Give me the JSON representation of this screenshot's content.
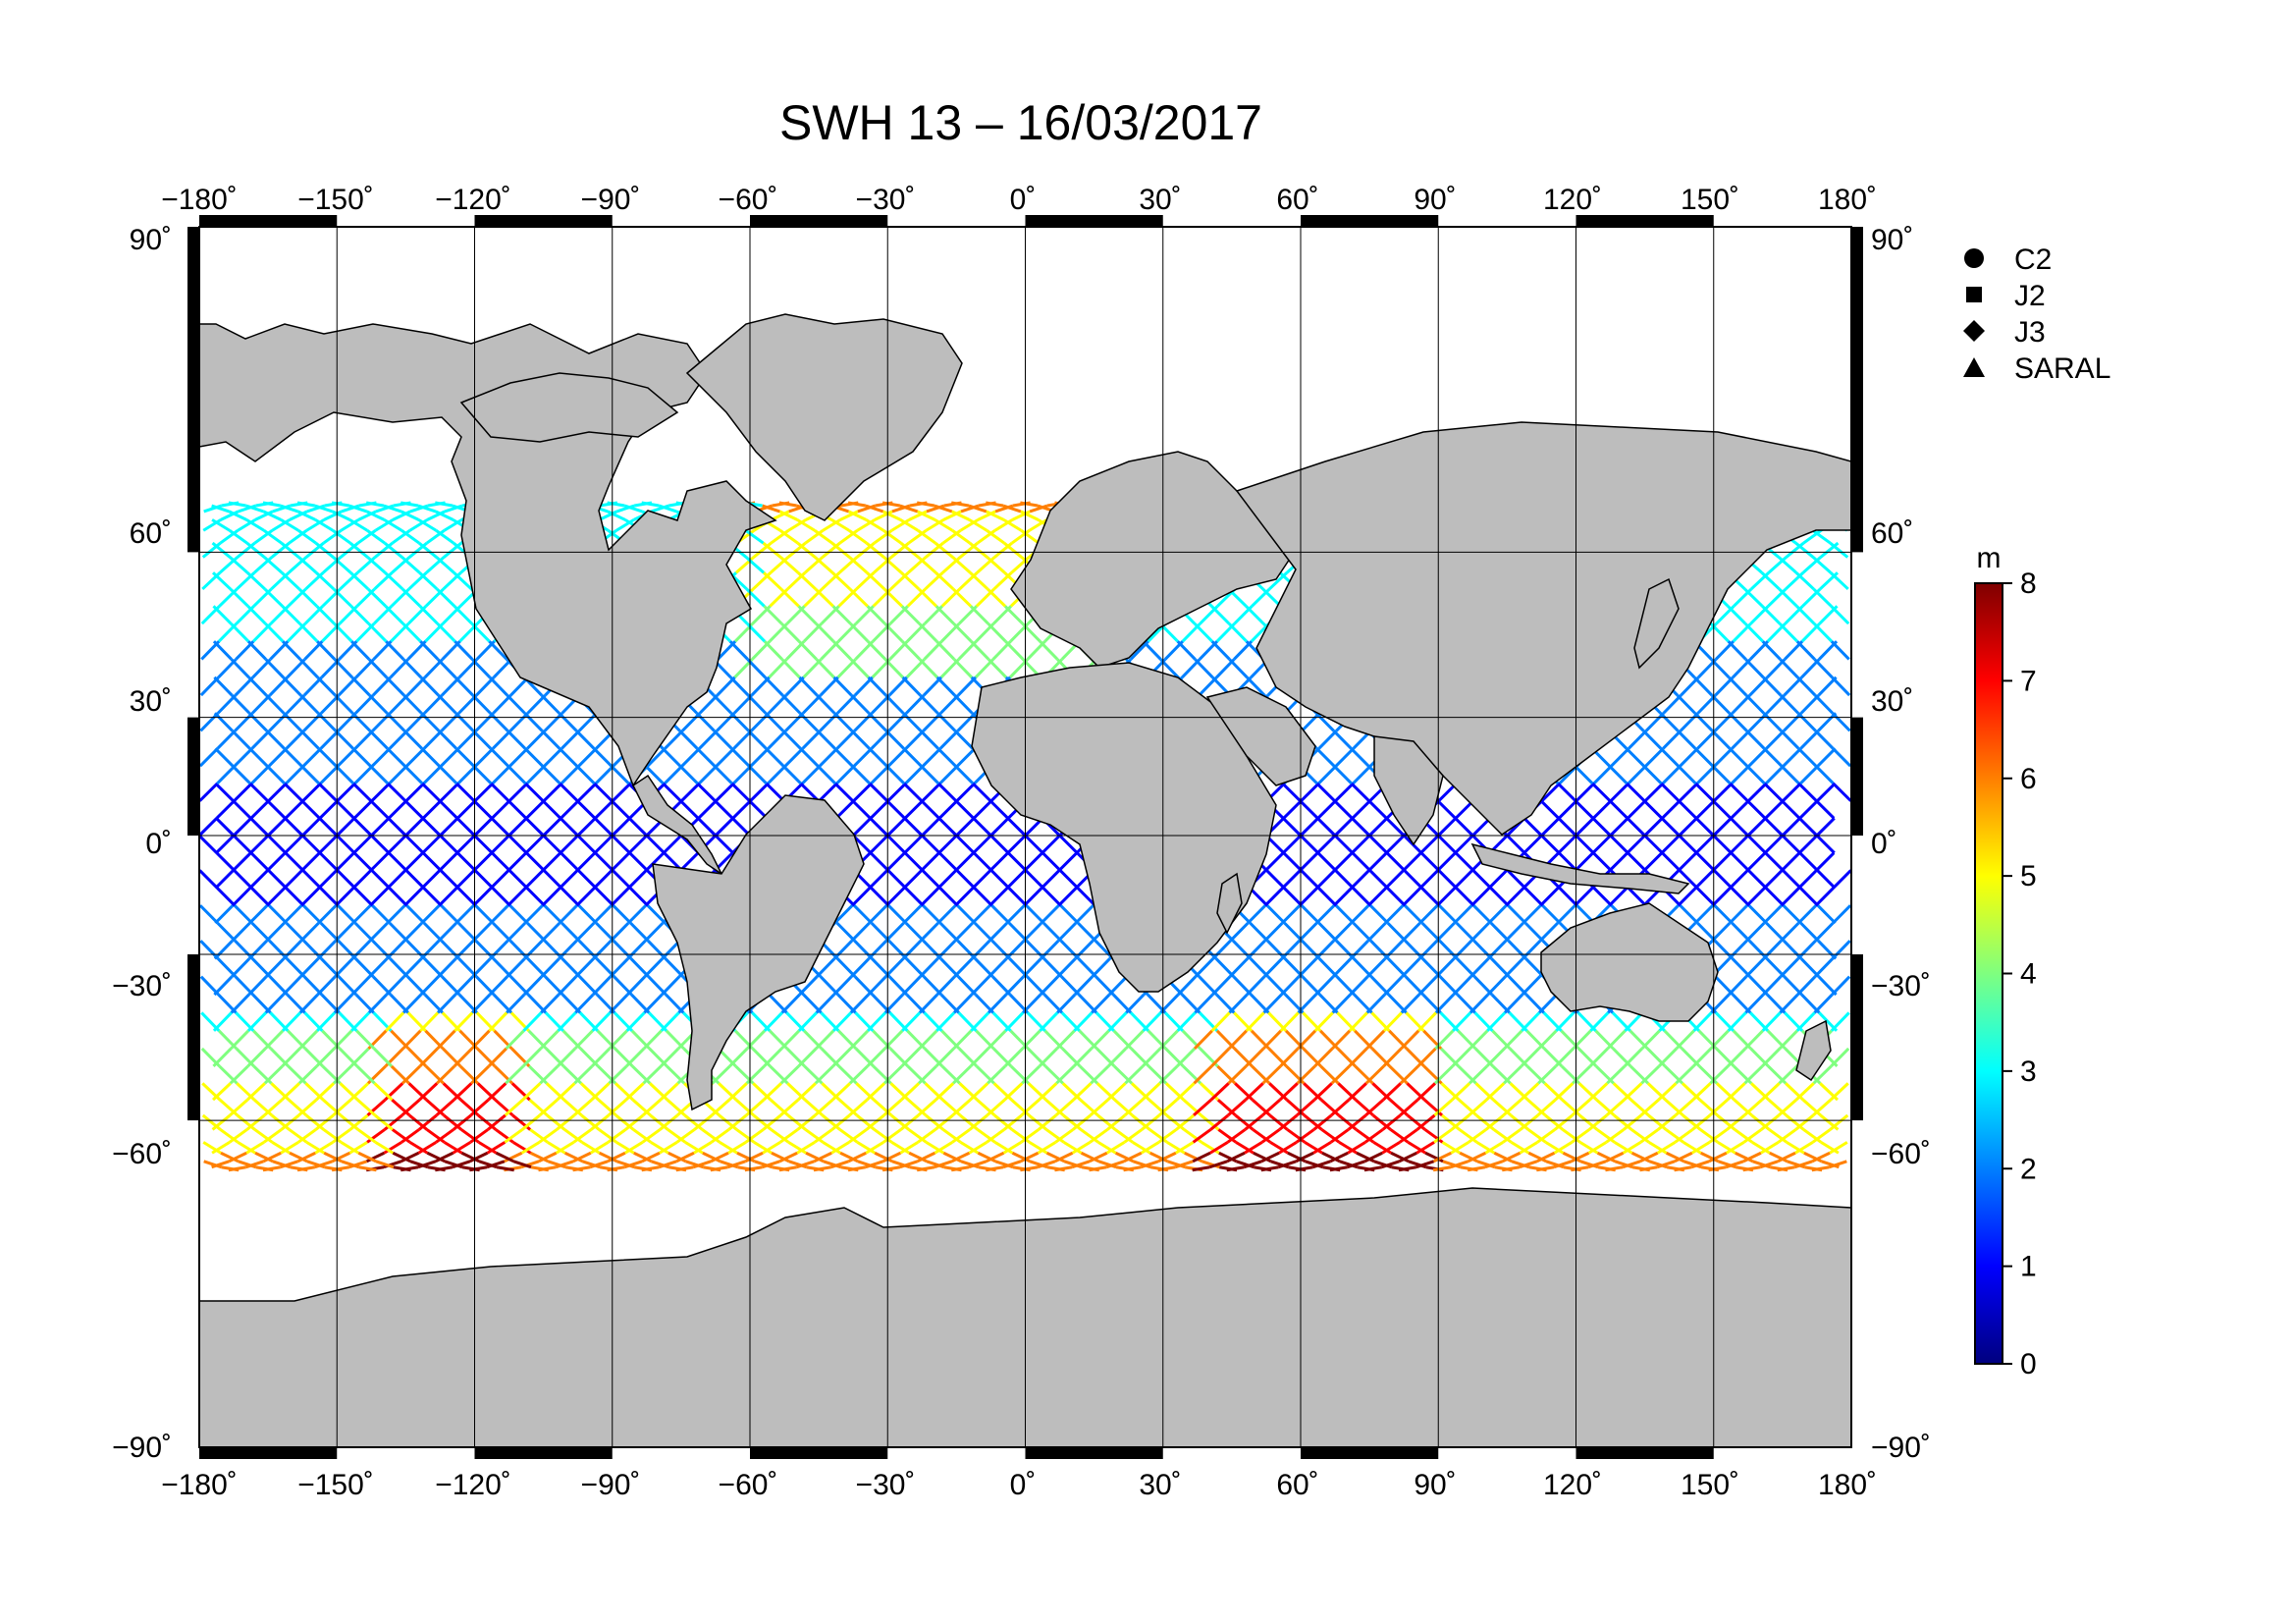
{
  "title": "SWH 13 – 16/03/2017",
  "colorbar": {
    "unit": "m",
    "ticks": [
      "0",
      "1",
      "2",
      "3",
      "4",
      "5",
      "6",
      "7",
      "8"
    ],
    "colors": [
      "#00007f",
      "#0000ff",
      "#007fff",
      "#00ffff",
      "#7fff7f",
      "#ffff00",
      "#ff7f00",
      "#ff0000",
      "#7f0000"
    ]
  },
  "legend": [
    {
      "label": "C2",
      "marker": "circle-icon"
    },
    {
      "label": "J2",
      "marker": "square-icon"
    },
    {
      "label": "J3",
      "marker": "diamond-icon"
    },
    {
      "label": "SARAL",
      "marker": "triangle-icon"
    }
  ],
  "lon_ticks": [
    "−180˚",
    "−150˚",
    "−120˚",
    "−90˚",
    "−60˚",
    "−30˚",
    "0˚",
    "30˚",
    "60˚",
    "90˚",
    "120˚",
    "150˚",
    "180˚"
  ],
  "lat_ticks": [
    "90˚",
    "60˚",
    "30˚",
    "0˚",
    "−30˚",
    "−60˚",
    "−90˚"
  ],
  "colors": {
    "land": "#bdbdbd",
    "ocean": "#ffffff",
    "grid": "#000000"
  }
}
